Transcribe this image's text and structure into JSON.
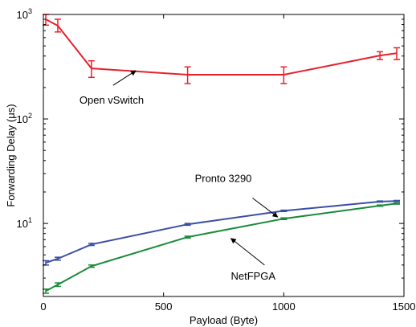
{
  "chart_data": {
    "type": "line",
    "title": "",
    "xlabel": "Payload (Byte)",
    "ylabel": "Forwarding Delay (μs)",
    "xlim": [
      0,
      1500
    ],
    "ylim": [
      2,
      1000
    ],
    "yscale": "log",
    "grid": false,
    "legend": "none",
    "xticks": [
      0,
      500,
      1000,
      1500
    ],
    "xtick_labels": [
      "0",
      "500",
      "1000",
      "1500"
    ],
    "yticks": [
      10,
      100,
      1000
    ],
    "ytick_labels": [
      {
        "base": "10",
        "exp": "1"
      },
      {
        "base": "10",
        "exp": "2"
      },
      {
        "base": "10",
        "exp": "3"
      }
    ],
    "series": [
      {
        "color": "#e8202a",
        "x": [
          10,
          60,
          200,
          600,
          1000,
          1400,
          1470
        ],
        "y": [
          900,
          780,
          305,
          265,
          265,
          405,
          425
        ],
        "err_low": [
          790,
          680,
          250,
          218,
          218,
          370,
          370
        ],
        "err_high": [
          1000,
          900,
          360,
          315,
          315,
          440,
          480
        ]
      },
      {
        "color": "#3a4fa6",
        "x": [
          10,
          60,
          200,
          600,
          1000,
          1400,
          1470
        ],
        "y": [
          4.2,
          4.6,
          6.3,
          9.8,
          13.2,
          16.2,
          16.4
        ],
        "err_low": [
          4.0,
          4.45,
          6.15,
          9.6,
          13.0,
          16.0,
          16.2
        ],
        "err_high": [
          4.4,
          4.75,
          6.45,
          10.0,
          13.4,
          16.4,
          16.6
        ]
      },
      {
        "color": "#1a8a3a",
        "x": [
          10,
          60,
          200,
          600,
          1000,
          1400,
          1470
        ],
        "y": [
          2.25,
          2.6,
          3.9,
          7.4,
          11.1,
          14.8,
          15.5
        ],
        "err_low": [
          2.15,
          2.5,
          3.8,
          7.25,
          10.9,
          14.6,
          15.3
        ],
        "err_high": [
          2.35,
          2.7,
          4.0,
          7.55,
          11.3,
          15.0,
          15.7
        ]
      }
    ],
    "annotations": [
      {
        "text": "Open vSwitch",
        "text_x": 150,
        "text_y": 140,
        "arrow_from": [
          290,
          210
        ],
        "arrow_to": [
          385,
          290
        ]
      },
      {
        "text": "Pronto 3290",
        "text_x": 630,
        "text_y": 25,
        "arrow_from": [
          870,
          17.5
        ],
        "arrow_to": [
          975,
          11.5
        ]
      },
      {
        "text": "NetFPGA",
        "text_x": 780,
        "text_y": 2.9,
        "arrow_from": [
          920,
          4.0
        ],
        "arrow_to": [
          780,
          7.2
        ]
      }
    ]
  }
}
